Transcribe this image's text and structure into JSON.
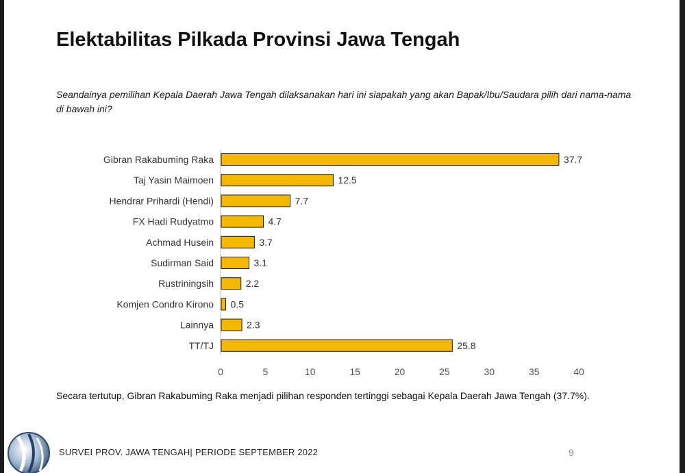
{
  "slide": {
    "title": "Elektabilitas Pilkada Provinsi Jawa Tengah",
    "question": "Seandainya pemilihan Kepala Daerah Jawa Tengah dilaksanakan hari ini siapakah yang akan Bapak/Ibu/Saudara pilih dari nama-nama di bawah ini?",
    "conclusion": "Secara tertutup, Gibran Rakabuming Raka menjadi pilihan responden tertinggi sebagai Kepala Daerah Jawa Tengah (37.7%).",
    "footer": "SURVEI PROV. JAWA TENGAH| PERIODE SEPTEMBER 2022",
    "page_number": "9",
    "logo_icon": "survey-globe-logo-icon"
  },
  "chart_data": {
    "type": "bar",
    "orientation": "horizontal",
    "categories": [
      "Gibran Rakabuming Raka",
      "Taj Yasin Maimoen",
      "Hendrar Prihardi (Hendi)",
      "FX Hadi Rudyatmo",
      "Achmad Husein",
      "Sudirman Said",
      "Rustriningsih",
      "Komjen Condro Kirono",
      "Lainnya",
      "TT/TJ"
    ],
    "values": [
      37.7,
      12.5,
      7.7,
      4.7,
      3.7,
      3.1,
      2.2,
      0.5,
      2.3,
      25.8
    ],
    "value_labels": [
      "37.7",
      "12.5",
      "7.7",
      "4.7",
      "3.7",
      "3.1",
      "2.2",
      "0.5",
      "2.3",
      "25.8"
    ],
    "xlim": [
      0,
      40
    ],
    "xticks": [
      "0",
      "5",
      "10",
      "15",
      "20",
      "25",
      "30",
      "35",
      "40"
    ],
    "grid": false,
    "legend": "none",
    "bar_color": "#F5B800",
    "bar_edge_color": "#1a1a1a"
  }
}
